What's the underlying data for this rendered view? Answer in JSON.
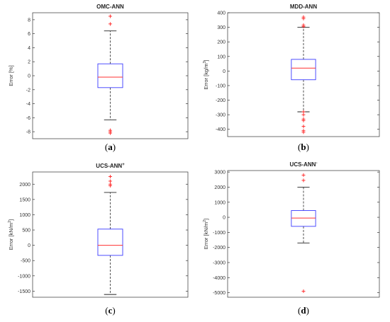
{
  "chart_data": [
    {
      "type": "box",
      "title": "OMC-ANN",
      "title_sup": "",
      "ylabel": "Error [%]",
      "ylabel_sup": "",
      "ylim": [
        -9,
        9
      ],
      "yticks": [
        -8,
        -6,
        -4,
        -2,
        0,
        2,
        4,
        6,
        8
      ],
      "box": {
        "q1": -1.7,
        "median": -0.2,
        "q3": 1.7,
        "whisker_low": -6.3,
        "whisker_high": 6.4
      },
      "outliers": [
        8.5,
        7.4,
        -7.8,
        -8.0,
        -8.2
      ],
      "caption_letter": "a"
    },
    {
      "type": "box",
      "title": "MDD-ANN",
      "title_sup": "",
      "ylabel": "Error [kg/m",
      "ylabel_sup": "3",
      "ylabel_tail": "]",
      "ylim": [
        -450,
        400
      ],
      "yticks": [
        -400,
        -300,
        -200,
        -100,
        0,
        100,
        200,
        300,
        400
      ],
      "box": {
        "q1": -60,
        "median": 20,
        "q3": 80,
        "whisker_low": -280,
        "whisker_high": 300
      },
      "outliers": [
        370,
        360,
        315,
        305,
        -280,
        -300,
        -330,
        -340,
        -380,
        -410,
        -420
      ],
      "caption_letter": "b"
    },
    {
      "type": "box",
      "title": "UCS-ANN",
      "title_sup": "+",
      "ylabel": "Error [kN/m",
      "ylabel_sup": "2",
      "ylabel_tail": "]",
      "ylim": [
        -1700,
        2400
      ],
      "yticks": [
        -1500,
        -1000,
        -500,
        0,
        500,
        1000,
        1500,
        2000
      ],
      "box": {
        "q1": -330,
        "median": 0,
        "q3": 530,
        "whisker_low": -1610,
        "whisker_high": 1730
      },
      "outliers": [
        2250,
        2100,
        2000,
        1950
      ],
      "caption_letter": "c"
    },
    {
      "type": "box",
      "title": "UCS-ANN",
      "title_sup": "-",
      "ylabel": "Error [kN/m",
      "ylabel_sup": "2",
      "ylabel_tail": "]",
      "ylim": [
        -5300,
        3100
      ],
      "yticks": [
        -5000,
        -4000,
        -3000,
        -2000,
        -1000,
        0,
        1000,
        2000,
        3000
      ],
      "box": {
        "q1": -600,
        "median": -50,
        "q3": 450,
        "whisker_low": -1700,
        "whisker_high": 2000
      },
      "outliers": [
        2800,
        2450,
        -4900
      ],
      "caption_letter": "d"
    }
  ]
}
